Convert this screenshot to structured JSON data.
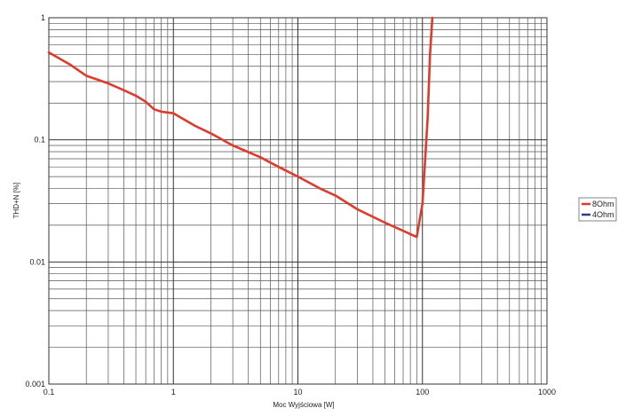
{
  "chart_data": {
    "type": "line",
    "title": "",
    "xlabel": "Moc Wyjściowa [W]",
    "ylabel": "THD+N [%]",
    "xscale": "log",
    "yscale": "log",
    "xlim": [
      0.1,
      1000
    ],
    "ylim": [
      0.001,
      1
    ],
    "grid": true,
    "legend_position": "right",
    "x_ticks": [
      {
        "value": 0.1,
        "label": "0.1"
      },
      {
        "value": 1,
        "label": "1"
      },
      {
        "value": 10,
        "label": "10"
      },
      {
        "value": 100,
        "label": "100"
      },
      {
        "value": 1000,
        "label": "1000"
      }
    ],
    "y_ticks": [
      {
        "value": 1,
        "label": "1"
      },
      {
        "value": 0.1,
        "label": "0.1"
      },
      {
        "value": 0.01,
        "label": "0.01"
      },
      {
        "value": 0.001,
        "label": "0.001"
      }
    ],
    "series": [
      {
        "name": "8Ohm",
        "color": "#e03a2c",
        "points": [
          [
            0.1,
            0.52
          ],
          [
            0.15,
            0.41
          ],
          [
            0.2,
            0.335
          ],
          [
            0.3,
            0.29
          ],
          [
            0.4,
            0.255
          ],
          [
            0.5,
            0.23
          ],
          [
            0.6,
            0.205
          ],
          [
            0.7,
            0.178
          ],
          [
            0.8,
            0.17
          ],
          [
            1.0,
            0.165
          ],
          [
            1.5,
            0.13
          ],
          [
            2,
            0.113
          ],
          [
            3,
            0.09
          ],
          [
            5,
            0.072
          ],
          [
            7,
            0.06
          ],
          [
            10,
            0.05
          ],
          [
            15,
            0.04
          ],
          [
            20,
            0.035
          ],
          [
            30,
            0.027
          ],
          [
            50,
            0.021
          ],
          [
            70,
            0.018
          ],
          [
            90,
            0.016
          ],
          [
            100,
            0.03
          ],
          [
            110,
            0.15
          ],
          [
            115,
            0.5
          ],
          [
            120,
            1.0
          ]
        ]
      },
      {
        "name": "4Ohm",
        "color": "#2a3f8f",
        "points": []
      }
    ]
  }
}
